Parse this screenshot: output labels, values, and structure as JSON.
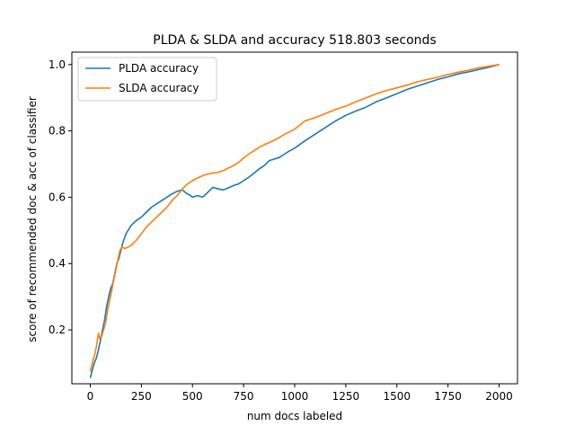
{
  "chart_data": {
    "type": "line",
    "title": "PLDA & SLDA and accuracy 518.803 seconds",
    "xlabel": "num docs labeled",
    "ylabel": "score of recommended doc & acc of classifier",
    "xlim": [
      -90,
      2090
    ],
    "ylim": [
      0.0375,
      1.0375
    ],
    "xticks": [
      0,
      250,
      500,
      750,
      1000,
      1250,
      1500,
      1750,
      2000
    ],
    "xtick_labels": [
      "0",
      "250",
      "500",
      "750",
      "1000",
      "1250",
      "1500",
      "1750",
      "2000"
    ],
    "yticks": [
      0.2,
      0.4,
      0.6,
      0.8,
      1.0
    ],
    "ytick_labels": [
      "0.2",
      "0.4",
      "0.6",
      "0.8",
      "1.0"
    ],
    "grid": false,
    "legend_position": "top-left",
    "series": [
      {
        "name": "PLDA accuracy",
        "color": "#1f77b4",
        "points": [
          [
            0,
            0.055
          ],
          [
            10,
            0.08
          ],
          [
            20,
            0.1
          ],
          [
            30,
            0.115
          ],
          [
            40,
            0.14
          ],
          [
            50,
            0.17
          ],
          [
            60,
            0.2
          ],
          [
            70,
            0.23
          ],
          [
            80,
            0.27
          ],
          [
            90,
            0.3
          ],
          [
            100,
            0.325
          ],
          [
            110,
            0.34
          ],
          [
            120,
            0.37
          ],
          [
            130,
            0.4
          ],
          [
            140,
            0.415
          ],
          [
            150,
            0.44
          ],
          [
            160,
            0.465
          ],
          [
            175,
            0.49
          ],
          [
            190,
            0.505
          ],
          [
            200,
            0.515
          ],
          [
            225,
            0.53
          ],
          [
            250,
            0.54
          ],
          [
            275,
            0.555
          ],
          [
            300,
            0.57
          ],
          [
            325,
            0.58
          ],
          [
            350,
            0.59
          ],
          [
            375,
            0.6
          ],
          [
            400,
            0.61
          ],
          [
            425,
            0.618
          ],
          [
            450,
            0.622
          ],
          [
            470,
            0.612
          ],
          [
            490,
            0.605
          ],
          [
            500,
            0.6
          ],
          [
            525,
            0.605
          ],
          [
            550,
            0.6
          ],
          [
            575,
            0.615
          ],
          [
            600,
            0.63
          ],
          [
            625,
            0.625
          ],
          [
            650,
            0.622
          ],
          [
            675,
            0.628
          ],
          [
            700,
            0.635
          ],
          [
            725,
            0.64
          ],
          [
            750,
            0.65
          ],
          [
            775,
            0.66
          ],
          [
            800,
            0.672
          ],
          [
            825,
            0.685
          ],
          [
            850,
            0.695
          ],
          [
            875,
            0.71
          ],
          [
            900,
            0.715
          ],
          [
            925,
            0.72
          ],
          [
            950,
            0.73
          ],
          [
            975,
            0.74
          ],
          [
            1000,
            0.748
          ],
          [
            1050,
            0.77
          ],
          [
            1100,
            0.79
          ],
          [
            1150,
            0.81
          ],
          [
            1200,
            0.83
          ],
          [
            1250,
            0.847
          ],
          [
            1300,
            0.86
          ],
          [
            1350,
            0.872
          ],
          [
            1400,
            0.888
          ],
          [
            1450,
            0.9
          ],
          [
            1500,
            0.912
          ],
          [
            1550,
            0.925
          ],
          [
            1600,
            0.935
          ],
          [
            1650,
            0.945
          ],
          [
            1700,
            0.955
          ],
          [
            1750,
            0.963
          ],
          [
            1800,
            0.972
          ],
          [
            1850,
            0.978
          ],
          [
            1900,
            0.985
          ],
          [
            1950,
            0.992
          ],
          [
            2000,
            1.0
          ]
        ]
      },
      {
        "name": "SLDA accuracy",
        "color": "#ff7f0e",
        "points": [
          [
            0,
            0.075
          ],
          [
            10,
            0.1
          ],
          [
            20,
            0.12
          ],
          [
            30,
            0.15
          ],
          [
            40,
            0.19
          ],
          [
            45,
            0.175
          ],
          [
            55,
            0.18
          ],
          [
            65,
            0.2
          ],
          [
            75,
            0.22
          ],
          [
            85,
            0.26
          ],
          [
            95,
            0.29
          ],
          [
            105,
            0.32
          ],
          [
            115,
            0.35
          ],
          [
            125,
            0.38
          ],
          [
            135,
            0.41
          ],
          [
            145,
            0.44
          ],
          [
            155,
            0.45
          ],
          [
            170,
            0.445
          ],
          [
            185,
            0.45
          ],
          [
            200,
            0.455
          ],
          [
            225,
            0.47
          ],
          [
            250,
            0.49
          ],
          [
            275,
            0.51
          ],
          [
            300,
            0.525
          ],
          [
            325,
            0.54
          ],
          [
            350,
            0.555
          ],
          [
            375,
            0.57
          ],
          [
            400,
            0.59
          ],
          [
            425,
            0.605
          ],
          [
            450,
            0.625
          ],
          [
            475,
            0.64
          ],
          [
            500,
            0.65
          ],
          [
            525,
            0.658
          ],
          [
            550,
            0.665
          ],
          [
            575,
            0.67
          ],
          [
            600,
            0.673
          ],
          [
            625,
            0.675
          ],
          [
            650,
            0.68
          ],
          [
            675,
            0.688
          ],
          [
            700,
            0.695
          ],
          [
            725,
            0.705
          ],
          [
            750,
            0.718
          ],
          [
            775,
            0.73
          ],
          [
            800,
            0.74
          ],
          [
            825,
            0.75
          ],
          [
            850,
            0.758
          ],
          [
            875,
            0.765
          ],
          [
            900,
            0.772
          ],
          [
            925,
            0.78
          ],
          [
            950,
            0.79
          ],
          [
            975,
            0.797
          ],
          [
            1000,
            0.805
          ],
          [
            1050,
            0.83
          ],
          [
            1100,
            0.84
          ],
          [
            1150,
            0.852
          ],
          [
            1200,
            0.865
          ],
          [
            1250,
            0.875
          ],
          [
            1300,
            0.888
          ],
          [
            1350,
            0.9
          ],
          [
            1400,
            0.912
          ],
          [
            1450,
            0.922
          ],
          [
            1500,
            0.93
          ],
          [
            1550,
            0.938
          ],
          [
            1600,
            0.948
          ],
          [
            1650,
            0.955
          ],
          [
            1700,
            0.962
          ],
          [
            1750,
            0.97
          ],
          [
            1800,
            0.977
          ],
          [
            1850,
            0.983
          ],
          [
            1900,
            0.99
          ],
          [
            1950,
            0.995
          ],
          [
            2000,
            1.0
          ]
        ]
      }
    ]
  }
}
